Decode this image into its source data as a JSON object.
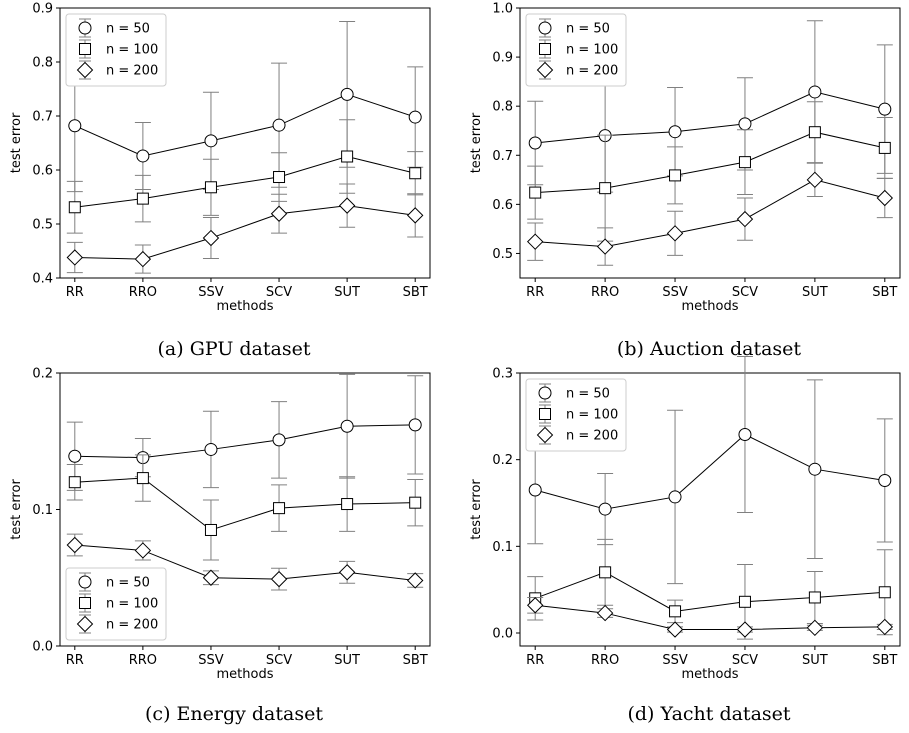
{
  "chart_data": [
    {
      "type": "line",
      "caption": "(a) GPU dataset",
      "xlabel": "methods",
      "ylabel": "test error",
      "categories": [
        "RR",
        "RRO",
        "SSV",
        "SCV",
        "SUT",
        "SBT"
      ],
      "ylim": [
        0.4,
        0.9
      ],
      "yticks": [
        "0.4",
        "0.5",
        "0.6",
        "0.7",
        "0.8",
        "0.9"
      ],
      "legend_position": "upper-left",
      "series": [
        {
          "name": "n = 50",
          "marker": "circle",
          "values": [
            0.682,
            0.626,
            0.654,
            0.683,
            0.74,
            0.698
          ],
          "err": [
            0.122,
            0.062,
            0.09,
            0.115,
            0.135,
            0.093
          ]
        },
        {
          "name": "n = 100",
          "marker": "square",
          "values": [
            0.531,
            0.547,
            0.568,
            0.587,
            0.625,
            0.594
          ],
          "err": [
            0.048,
            0.043,
            0.052,
            0.045,
            0.068,
            0.04
          ]
        },
        {
          "name": "n = 200",
          "marker": "diamond",
          "values": [
            0.438,
            0.435,
            0.474,
            0.519,
            0.534,
            0.516
          ],
          "err": [
            0.028,
            0.026,
            0.038,
            0.036,
            0.04,
            0.04
          ]
        }
      ]
    },
    {
      "type": "line",
      "caption": "(b) Auction dataset",
      "xlabel": "methods",
      "ylabel": "test error",
      "categories": [
        "RR",
        "RRO",
        "SSV",
        "SCV",
        "SUT",
        "SBT"
      ],
      "ylim": [
        0.45,
        1.0
      ],
      "yticks": [
        "0.5",
        "0.6",
        "0.7",
        "0.8",
        "0.9",
        "1.0"
      ],
      "legend_position": "upper-left",
      "series": [
        {
          "name": "n = 50",
          "marker": "circle",
          "values": [
            0.725,
            0.74,
            0.748,
            0.764,
            0.829,
            0.794
          ],
          "err": [
            0.085,
            0.115,
            0.09,
            0.094,
            0.145,
            0.131
          ]
        },
        {
          "name": "n = 100",
          "marker": "square",
          "values": [
            0.624,
            0.633,
            0.659,
            0.686,
            0.747,
            0.715
          ],
          "err": [
            0.054,
            0.108,
            0.058,
            0.066,
            0.062,
            0.062
          ]
        },
        {
          "name": "n = 200",
          "marker": "diamond",
          "values": [
            0.524,
            0.514,
            0.541,
            0.57,
            0.65,
            0.613
          ],
          "err": [
            0.038,
            0.038,
            0.045,
            0.043,
            0.034,
            0.04
          ]
        }
      ]
    },
    {
      "type": "line",
      "caption": "(c) Energy dataset",
      "xlabel": "methods",
      "ylabel": "test error",
      "categories": [
        "RR",
        "RRO",
        "SSV",
        "SCV",
        "SUT",
        "SBT"
      ],
      "ylim": [
        0.0,
        0.2
      ],
      "yticks": [
        "0.0",
        "0.1",
        "0.2"
      ],
      "legend_position": "lower-left",
      "series": [
        {
          "name": "n = 50",
          "marker": "circle",
          "values": [
            0.139,
            0.138,
            0.144,
            0.151,
            0.161,
            0.162
          ],
          "err": [
            0.025,
            0.014,
            0.028,
            0.028,
            0.038,
            0.036
          ]
        },
        {
          "name": "n = 100",
          "marker": "square",
          "values": [
            0.12,
            0.123,
            0.085,
            0.101,
            0.104,
            0.105
          ],
          "err": [
            0.013,
            0.017,
            0.022,
            0.017,
            0.02,
            0.017
          ]
        },
        {
          "name": "n = 200",
          "marker": "diamond",
          "values": [
            0.074,
            0.07,
            0.05,
            0.049,
            0.054,
            0.048
          ],
          "err": [
            0.008,
            0.007,
            0.005,
            0.008,
            0.008,
            0.005
          ]
        }
      ]
    },
    {
      "type": "line",
      "caption": "(d) Yacht dataset",
      "xlabel": "methods",
      "ylabel": "test error",
      "categories": [
        "RR",
        "RRO",
        "SSV",
        "SCV",
        "SUT",
        "SBT"
      ],
      "ylim": [
        -0.015,
        0.3
      ],
      "yticks": [
        "0.0",
        "0.1",
        "0.2",
        "0.3"
      ],
      "legend_position": "upper-left",
      "series": [
        {
          "name": "n = 50",
          "marker": "circle",
          "values": [
            0.165,
            0.143,
            0.157,
            0.229,
            0.189,
            0.176
          ],
          "err": [
            0.062,
            0.041,
            0.1,
            0.09,
            0.103,
            0.071
          ]
        },
        {
          "name": "n = 100",
          "marker": "square",
          "values": [
            0.04,
            0.07,
            0.025,
            0.036,
            0.041,
            0.047
          ],
          "err": [
            0.025,
            0.038,
            0.013,
            0.043,
            0.03,
            0.049
          ]
        },
        {
          "name": "n = 200",
          "marker": "diamond",
          "values": [
            0.032,
            0.023,
            0.004,
            0.004,
            0.006,
            0.007
          ],
          "err": [
            0.009,
            0.005,
            0.003,
            0.003,
            0.003,
            0.003
          ]
        }
      ]
    }
  ]
}
